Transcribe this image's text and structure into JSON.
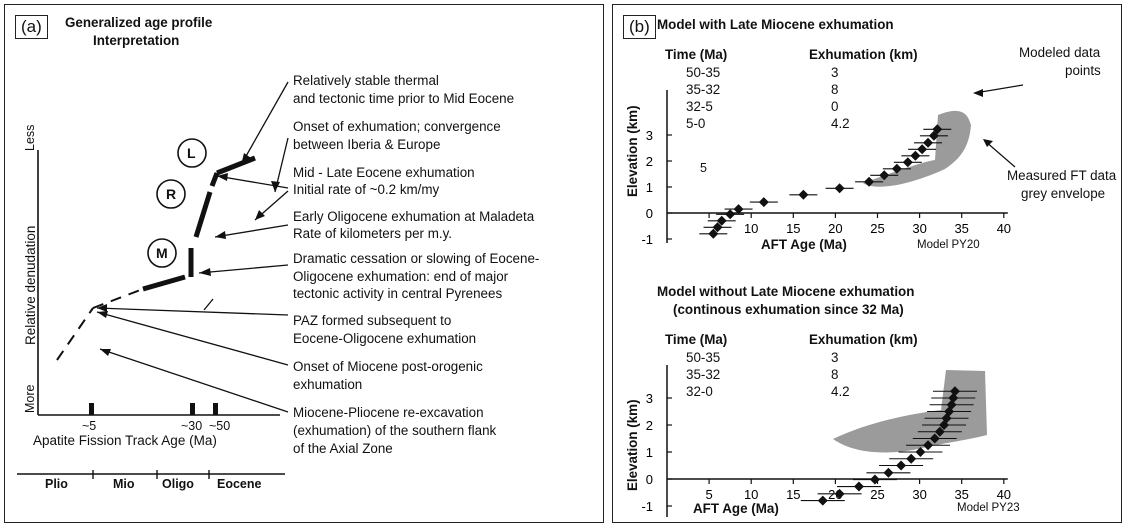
{
  "panel_a": {
    "tag": "(a)",
    "title_line1": "Generalized age profile",
    "title_line2": "Interpretation",
    "y_axis_label": "Relative denudation",
    "y_top": "Less",
    "y_bottom": "More",
    "x_axis_label": "Apatite Fission Track Age (Ma)",
    "x_ticks": [
      "~5",
      "~30",
      "~50"
    ],
    "epochs": [
      "Plio",
      "Mio",
      "Oligo",
      "Eocene"
    ],
    "circles": [
      "L",
      "R",
      "M"
    ],
    "annotations": [
      {
        "line1": "Relatively stable thermal",
        "line2": "and tectonic time prior to Mid Eocene"
      },
      {
        "line1": "Onset of exhumation; convergence",
        "line2": "between Iberia & Europe"
      },
      {
        "line1": "Mid - Late Eocene exhumation",
        "line2": "Initial rate of ~0.2 km/my"
      },
      {
        "line1": "Early Oligocene exhumation at Maladeta",
        "line2": "Rate of kilometers per m.y."
      },
      {
        "line1": "Dramatic cessation or slowing of Eocene-",
        "line2": "Oligocene exhumation: end of major",
        "line3": "tectonic activity in central Pyrenees"
      },
      {
        "line1": "PAZ formed subsequent to",
        "line2": "Eocene-Oligocene exhumation"
      },
      {
        "line1": "Onset of Miocene post-orogenic",
        "line2": "exhumation"
      },
      {
        "line1": "Miocene-Pliocene re-excavation",
        "line2": "(exhumation) of the southern flank",
        "line3": "of the Axial Zone"
      }
    ]
  },
  "panel_b": {
    "tag": "(b)",
    "top": {
      "title": "Model with Late Miocene exhumation",
      "col1": "Time (Ma)",
      "col2": "Exhumation (km)",
      "rows": [
        [
          "50-35",
          "3"
        ],
        [
          "35-32",
          "8"
        ],
        [
          "32-5",
          "0"
        ],
        [
          "5-0",
          "4.2"
        ]
      ],
      "model": "Model PY20",
      "callout_modeled": [
        "Modeled data",
        "points"
      ],
      "callout_measured": [
        "Measured FT data",
        "grey envelope"
      ],
      "inline_label": "5"
    },
    "bottom": {
      "title_line1": "Model without Late Miocene exhumation",
      "title_line2": "(continous exhumation since 32 Ma)",
      "col1": "Time (Ma)",
      "col2": "Exhumation (km)",
      "rows": [
        [
          "50-35",
          "3"
        ],
        [
          "35-32",
          "8"
        ],
        [
          "32-0",
          "4.2"
        ]
      ],
      "model": "Model PY23"
    },
    "y_axis_label": "Elevation (km)",
    "x_axis_label": "AFT Age (Ma)",
    "y_ticks": [
      "3",
      "2",
      "1",
      "0",
      "-1"
    ],
    "x_ticks": [
      "5",
      "10",
      "15",
      "20",
      "25",
      "30",
      "35",
      "40"
    ]
  },
  "chart_data": [
    {
      "type": "scatter",
      "title": "Model with Late Miocene exhumation",
      "xlabel": "AFT Age (Ma)",
      "ylabel": "Elevation (km)",
      "xlim": [
        0,
        40
      ],
      "ylim": [
        -1,
        3.5
      ],
      "points": [
        [
          5.5,
          -0.8
        ],
        [
          6,
          -0.55
        ],
        [
          6.5,
          -0.3
        ],
        [
          7.5,
          -0.05
        ],
        [
          8.5,
          0.15
        ],
        [
          11.5,
          0.42
        ],
        [
          16.2,
          0.7
        ],
        [
          20.5,
          0.95
        ],
        [
          24,
          1.2
        ],
        [
          25.8,
          1.45
        ],
        [
          27.3,
          1.7
        ],
        [
          28.6,
          1.95
        ],
        [
          29.5,
          2.2
        ],
        [
          30.3,
          2.45
        ],
        [
          31,
          2.7
        ],
        [
          31.7,
          2.97
        ],
        [
          32.1,
          3.22
        ]
      ]
    },
    {
      "type": "scatter",
      "title": "Model without Late Miocene exhumation",
      "xlabel": "AFT Age (Ma)",
      "ylabel": "Elevation (km)",
      "xlim": [
        0,
        40
      ],
      "ylim": [
        -1,
        3.5
      ],
      "points": [
        [
          18.5,
          -0.8
        ],
        [
          20.5,
          -0.55
        ],
        [
          22.8,
          -0.28
        ],
        [
          24.7,
          -0.02
        ],
        [
          26.3,
          0.23
        ],
        [
          27.8,
          0.5
        ],
        [
          29,
          0.75
        ],
        [
          30.1,
          1.0
        ],
        [
          31,
          1.25
        ],
        [
          31.8,
          1.5
        ],
        [
          32.4,
          1.75
        ],
        [
          32.9,
          2.0
        ],
        [
          33.2,
          2.25
        ],
        [
          33.5,
          2.5
        ],
        [
          33.8,
          2.75
        ],
        [
          34,
          3.0
        ],
        [
          34.2,
          3.25
        ]
      ]
    }
  ]
}
